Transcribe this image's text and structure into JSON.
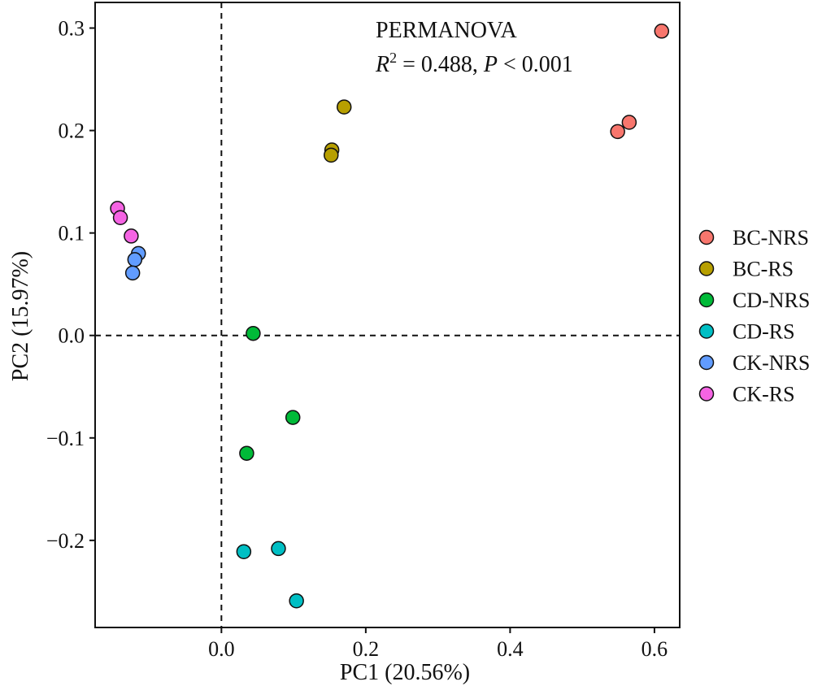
{
  "chart_data": {
    "type": "scatter",
    "xlabel": "PC1 (20.56%)",
    "ylabel": "PC2 (15.97%)",
    "xlim": [
      -0.175,
      0.635
    ],
    "ylim": [
      -0.285,
      0.325
    ],
    "xticks": [
      0.0,
      0.2,
      0.4,
      0.6
    ],
    "xtick_labels": [
      "0.0",
      "0.2",
      "0.4",
      "0.6"
    ],
    "yticks": [
      0.3,
      0.2,
      0.1,
      0.0,
      -0.1,
      -0.2
    ],
    "ytick_labels": [
      "0.3",
      "0.2",
      "0.1",
      "0.0",
      "−0.1",
      "−0.2"
    ],
    "reference_lines": {
      "x": 0,
      "y": 0,
      "style": "dashed"
    },
    "annotation": {
      "title": "PERMANOVA",
      "r_symbol": "R",
      "r_exp": "2",
      "r_value": " = 0.488, ",
      "p_symbol": "P",
      "p_value": " < 0.001"
    },
    "legend_position": "right",
    "series": [
      {
        "name": "BC-NRS",
        "color": "#F8766D",
        "points": [
          [
            0.61,
            0.297
          ],
          [
            0.565,
            0.208
          ],
          [
            0.549,
            0.199
          ]
        ]
      },
      {
        "name": "BC-RS",
        "color": "#B79F00",
        "points": [
          [
            0.17,
            0.223
          ],
          [
            0.153,
            0.181
          ],
          [
            0.152,
            0.176
          ]
        ]
      },
      {
        "name": "CD-NRS",
        "color": "#00BA38",
        "points": [
          [
            0.044,
            0.002
          ],
          [
            0.099,
            -0.08
          ],
          [
            0.035,
            -0.115
          ]
        ]
      },
      {
        "name": "CD-RS",
        "color": "#00BFC4",
        "points": [
          [
            0.079,
            -0.208
          ],
          [
            0.031,
            -0.211
          ],
          [
            0.104,
            -0.259
          ]
        ]
      },
      {
        "name": "CK-NRS",
        "color": "#619CFF",
        "points": [
          [
            -0.115,
            0.08
          ],
          [
            -0.12,
            0.074
          ],
          [
            -0.123,
            0.061
          ]
        ]
      },
      {
        "name": "CK-RS",
        "color": "#F564E3",
        "points": [
          [
            -0.144,
            0.124
          ],
          [
            -0.14,
            0.115
          ],
          [
            -0.125,
            0.097
          ]
        ]
      }
    ]
  }
}
